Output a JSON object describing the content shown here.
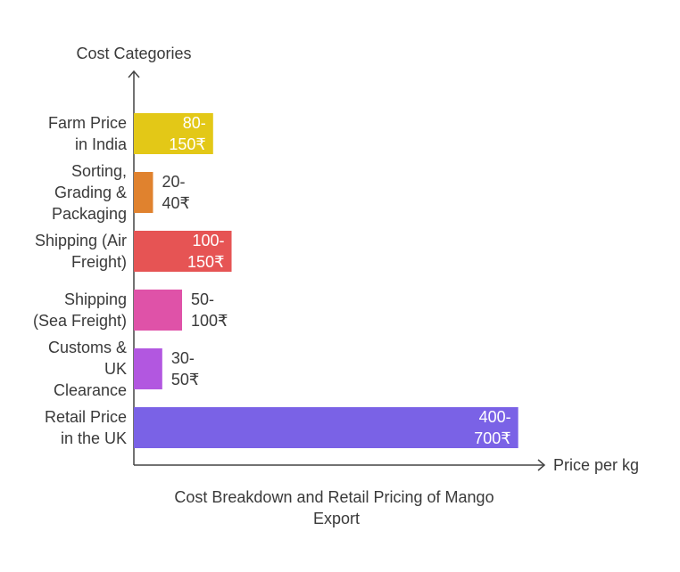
{
  "chart_data": {
    "type": "bar",
    "orientation": "horizontal",
    "title": "Cost Breakdown and Retail Pricing of Mango Export",
    "ylabel": "Cost Categories",
    "xlabel": "Price per kg",
    "categories": [
      "Farm Price in India",
      "Sorting, Grading & Packaging",
      "Shipping (Air Freight)",
      "Shipping (Sea Freight)",
      "Customs & UK Clearance",
      "Retail Price in the UK"
    ],
    "category_lines": [
      [
        "Farm Price",
        "in India"
      ],
      [
        "Sorting,",
        "Grading &",
        "Packaging"
      ],
      [
        "Shipping (Air",
        "Freight)"
      ],
      [
        "Shipping",
        "(Sea Freight)"
      ],
      [
        "Customs &",
        "UK",
        "Clearance"
      ],
      [
        "Retail Price",
        "in the UK"
      ]
    ],
    "ranges": [
      [
        80,
        150
      ],
      [
        20,
        40
      ],
      [
        100,
        150
      ],
      [
        50,
        100
      ],
      [
        30,
        50
      ],
      [
        400,
        700
      ]
    ],
    "values": [
      150,
      40,
      150,
      100,
      50,
      700
    ],
    "value_labels": [
      "80-150₹",
      "20-40₹",
      "100-150₹",
      "50-100₹",
      "30-50₹",
      "400-700₹"
    ],
    "value_label_lines": [
      [
        "80-",
        "150₹"
      ],
      [
        "20-",
        "40₹"
      ],
      [
        "100-",
        "150₹"
      ],
      [
        "50-",
        "100₹"
      ],
      [
        "30-",
        "50₹"
      ],
      [
        "400-",
        "700₹"
      ]
    ],
    "colors": [
      "#e3c817",
      "#e0822e",
      "#e65454",
      "#df52a8",
      "#b257e0",
      "#7a62e6"
    ],
    "bar_scale_values": [
      1.2,
      0.29,
      1.48,
      0.73,
      0.43,
      5.82
    ],
    "xlim": [
      0,
      6
    ],
    "caption_lines": [
      "Cost Breakdown and Retail Pricing of Mango",
      "Export"
    ]
  }
}
